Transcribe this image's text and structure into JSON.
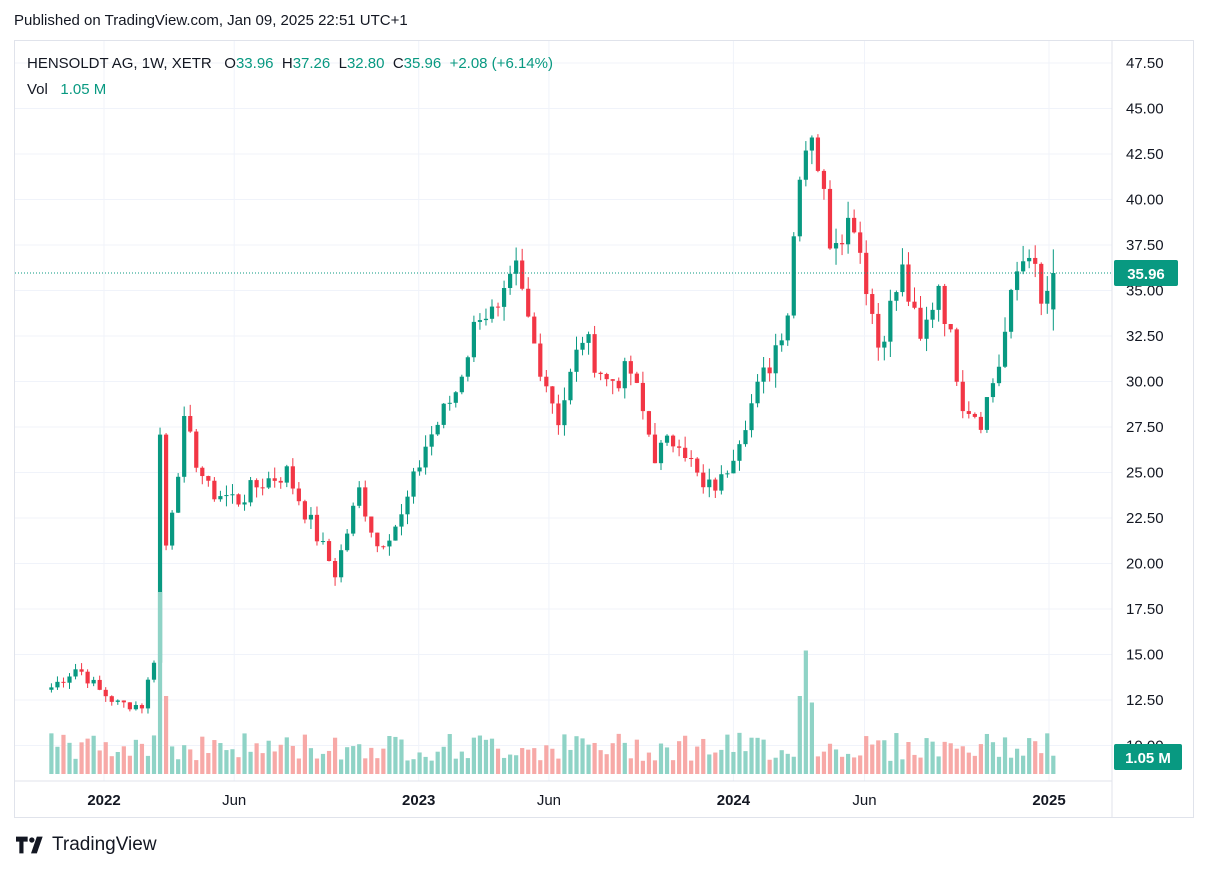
{
  "published": "Published on TradingView.com, Jan 09, 2025 22:51 UTC+1",
  "legend": {
    "symbol": "HENSOLDT AG, 1W, XETR",
    "o_label": "O",
    "o_value": "33.96",
    "h_label": "H",
    "h_value": "37.26",
    "l_label": "L",
    "l_value": "32.80",
    "c_label": "C",
    "c_value": "35.96",
    "change": "+2.08 (+6.14%)",
    "vol_label": "Vol",
    "vol_value": "1.05 M"
  },
  "footer": {
    "brand": "TradingView"
  },
  "colors": {
    "up": "#089981",
    "down": "#f23645",
    "up_vol": "#8fd3c6",
    "down_vol": "#f7a9a7"
  },
  "chart_data": {
    "type": "candlestick",
    "interval": "1W",
    "y_axis_ticks": [
      "47.50",
      "45.00",
      "42.50",
      "40.00",
      "37.50",
      "35.00",
      "32.50",
      "30.00",
      "27.50",
      "25.00",
      "22.50",
      "20.00",
      "17.50",
      "15.00",
      "12.50",
      "10.00"
    ],
    "ylim": [
      10,
      47.5
    ],
    "x_axis_labels": [
      "2022",
      "Jun",
      "2023",
      "Jun",
      "2024",
      "Jun",
      "2025"
    ],
    "last_price_label": "35.96",
    "last_volume_label": "1.05 M",
    "anchors": [
      {
        "date": "2021-11-01",
        "price": 13.2
      },
      {
        "date": "2021-12-01",
        "price": 14.3
      },
      {
        "date": "2021-12-27",
        "price": 13.0
      },
      {
        "date": "2022-01-17",
        "price": 12.3
      },
      {
        "date": "2022-02-14",
        "price": 12.2
      },
      {
        "date": "2022-02-28",
        "price": 14.8
      },
      {
        "date": "2022-03-07",
        "price": 27.0
      },
      {
        "date": "2022-03-14",
        "price": 21.0
      },
      {
        "date": "2022-04-04",
        "price": 27.5
      },
      {
        "date": "2022-05-02",
        "price": 24.0
      },
      {
        "date": "2022-06-06",
        "price": 23.5
      },
      {
        "date": "2022-07-04",
        "price": 24.5
      },
      {
        "date": "2022-08-01",
        "price": 25.0
      },
      {
        "date": "2022-09-05",
        "price": 21.5
      },
      {
        "date": "2022-09-26",
        "price": 19.5
      },
      {
        "date": "2022-10-24",
        "price": 24.0
      },
      {
        "date": "2022-11-14",
        "price": 21.0
      },
      {
        "date": "2022-12-12",
        "price": 22.5
      },
      {
        "date": "2023-01-09",
        "price": 26.5
      },
      {
        "date": "2023-02-13",
        "price": 29.5
      },
      {
        "date": "2023-03-13",
        "price": 34.0
      },
      {
        "date": "2023-04-03",
        "price": 33.5
      },
      {
        "date": "2023-04-24",
        "price": 36.0
      },
      {
        "date": "2023-05-15",
        "price": 32.0
      },
      {
        "date": "2023-06-12",
        "price": 28.0
      },
      {
        "date": "2023-07-10",
        "price": 32.5
      },
      {
        "date": "2023-08-07",
        "price": 30.0
      },
      {
        "date": "2023-09-04",
        "price": 30.5
      },
      {
        "date": "2023-10-02",
        "price": 26.0
      },
      {
        "date": "2023-10-30",
        "price": 27.0
      },
      {
        "date": "2023-11-27",
        "price": 24.0
      },
      {
        "date": "2023-12-18",
        "price": 24.5
      },
      {
        "date": "2024-01-15",
        "price": 28.0
      },
      {
        "date": "2024-02-12",
        "price": 31.0
      },
      {
        "date": "2024-03-04",
        "price": 34.0
      },
      {
        "date": "2024-03-18",
        "price": 42.0
      },
      {
        "date": "2024-04-01",
        "price": 44.0
      },
      {
        "date": "2024-04-22",
        "price": 38.0
      },
      {
        "date": "2024-05-20",
        "price": 39.0
      },
      {
        "date": "2024-06-17",
        "price": 32.0
      },
      {
        "date": "2024-07-15",
        "price": 36.0
      },
      {
        "date": "2024-08-05",
        "price": 32.0
      },
      {
        "date": "2024-08-26",
        "price": 35.5
      },
      {
        "date": "2024-09-23",
        "price": 29.0
      },
      {
        "date": "2024-10-14",
        "price": 28.0
      },
      {
        "date": "2024-11-04",
        "price": 31.0
      },
      {
        "date": "2024-11-25",
        "price": 36.0
      },
      {
        "date": "2024-12-09",
        "price": 37.5
      },
      {
        "date": "2024-12-23",
        "price": 34.0
      },
      {
        "date": "2025-01-06",
        "price": 35.96
      }
    ],
    "volume_spikes": [
      {
        "date": "2022-03-07",
        "volume": 14
      },
      {
        "date": "2022-03-14",
        "volume": 6
      },
      {
        "date": "2024-03-18",
        "volume": 6
      },
      {
        "date": "2024-03-25",
        "volume": 9.5
      },
      {
        "date": "2024-04-01",
        "volume": 5.5
      }
    ]
  }
}
